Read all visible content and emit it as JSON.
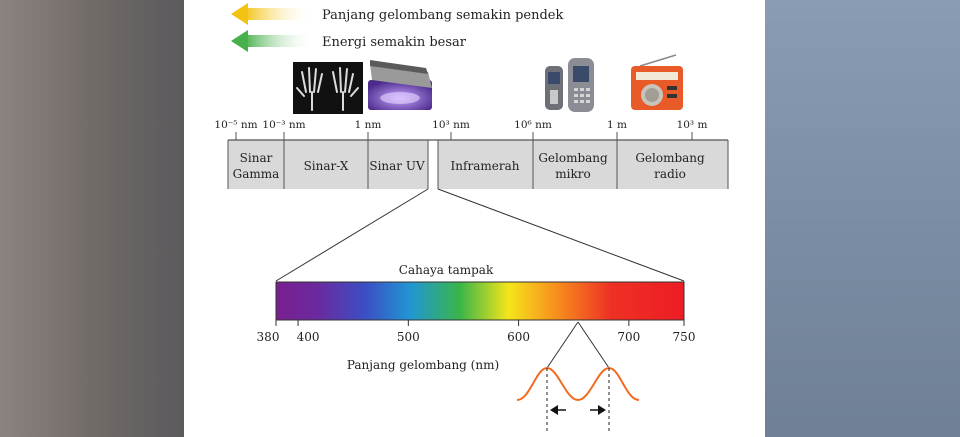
{
  "legend": {
    "wavelength_shorter": "Panjang gelombang semakin pendek",
    "energy_greater": "Energi semakin besar",
    "colors": {
      "wavelength_arrow": "#f2c313",
      "energy_arrow": "#52b552"
    }
  },
  "spectrum_scale": {
    "ticks": [
      {
        "label": "10⁻⁵ nm"
      },
      {
        "label": "10⁻³ nm"
      },
      {
        "label": "1 nm"
      },
      {
        "label": "10³ nm"
      },
      {
        "label": "10⁶ nm"
      },
      {
        "label": "1 m"
      },
      {
        "label": "10³ m"
      }
    ]
  },
  "bands": [
    {
      "line1": "Sinar",
      "line2": "Gamma"
    },
    {
      "line1": "Sinar-X",
      "line2": ""
    },
    {
      "line1": "Sinar UV",
      "line2": ""
    },
    {
      "line1": "Inframerah",
      "line2": ""
    },
    {
      "line1": "Gelombang",
      "line2": "mikro"
    },
    {
      "line1": "Gelombang",
      "line2": "radio"
    }
  ],
  "visible_light": {
    "title": "Cahaya tampak",
    "axis_label": "Panjang gelombang (nm)",
    "range_nm": [
      380,
      750
    ],
    "ticks": [
      380,
      400,
      500,
      600,
      700,
      750
    ],
    "colors": [
      "#7a1f8f",
      "#3c3cc8",
      "#2a8fd0",
      "#39b54a",
      "#f5e51a",
      "#f7941d",
      "#ee3124",
      "#ed1c24"
    ]
  },
  "icons": [
    "xray-hands-icon",
    "uv-lamp-icon",
    "mobile-phones-icon",
    "radio-icon",
    "wave-icon"
  ]
}
